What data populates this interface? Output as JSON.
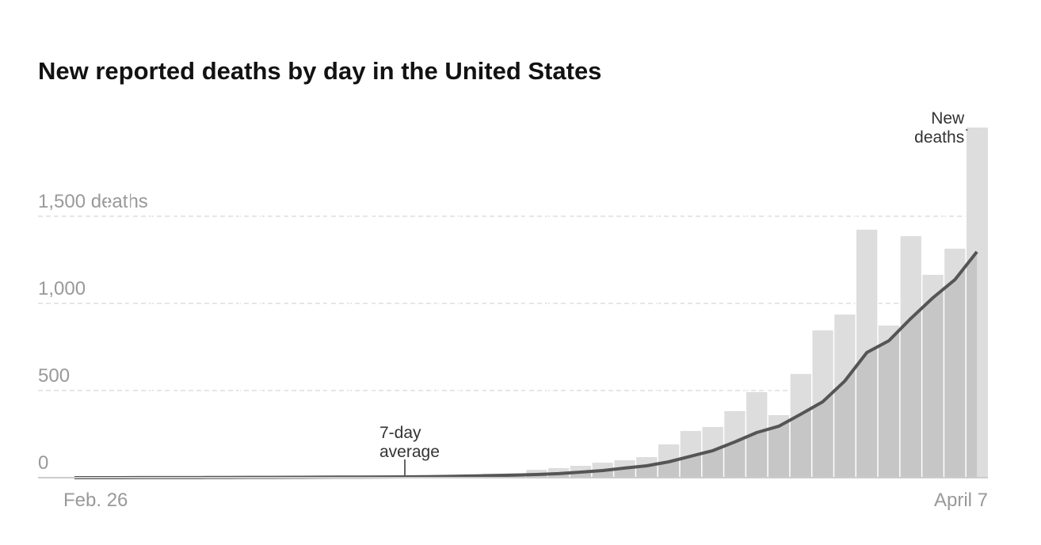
{
  "chart_data": {
    "type": "bar",
    "title": "New reported deaths by day in the United States",
    "categories": [
      "Feb. 26",
      null,
      null,
      null,
      null,
      null,
      null,
      null,
      null,
      null,
      null,
      null,
      null,
      null,
      null,
      null,
      null,
      null,
      null,
      null,
      null,
      null,
      null,
      null,
      null,
      null,
      null,
      null,
      null,
      null,
      null,
      null,
      null,
      null,
      null,
      null,
      null,
      null,
      null,
      null,
      null,
      "April 7"
    ],
    "series": [
      {
        "color": "#dddddd",
        "values": [
          0,
          0,
          0,
          1,
          1,
          1,
          2,
          3,
          4,
          1,
          3,
          4,
          4,
          3,
          5,
          8,
          10,
          12,
          18,
          23,
          25,
          45,
          55,
          68,
          86,
          100,
          118,
          191,
          268,
          291,
          382,
          491,
          359,
          595,
          845,
          936,
          1423,
          873,
          1386,
          1164,
          1314,
          2009
        ]
      },
      {
        "type": "line",
        "color": "#555555",
        "area_color": "#c6c6c6",
        "values": [
          0,
          0,
          0,
          0.3,
          0.4,
          0.6,
          0.9,
          1.3,
          1.7,
          1.9,
          2.3,
          2.7,
          3.1,
          3.4,
          3.9,
          4.6,
          5.9,
          7.4,
          9.6,
          12,
          15,
          18,
          23,
          32,
          41,
          55,
          68,
          91,
          123,
          155,
          205,
          259,
          295,
          364,
          436,
          555,
          718,
          786,
          914,
          1032,
          1136,
          1296
        ]
      }
    ],
    "ylim": [
      0,
      2050
    ],
    "yticks": [
      0,
      500,
      {
        "value": 1000,
        "label": "1,000"
      },
      {
        "value": 1500,
        "label": "1,500 deaths"
      }
    ],
    "grid": true,
    "annotations": [
      {
        "lines": [
          "New",
          "deaths"
        ],
        "index": 41
      },
      {
        "lines": [
          "7-day",
          "average"
        ],
        "index": 15
      }
    ]
  }
}
